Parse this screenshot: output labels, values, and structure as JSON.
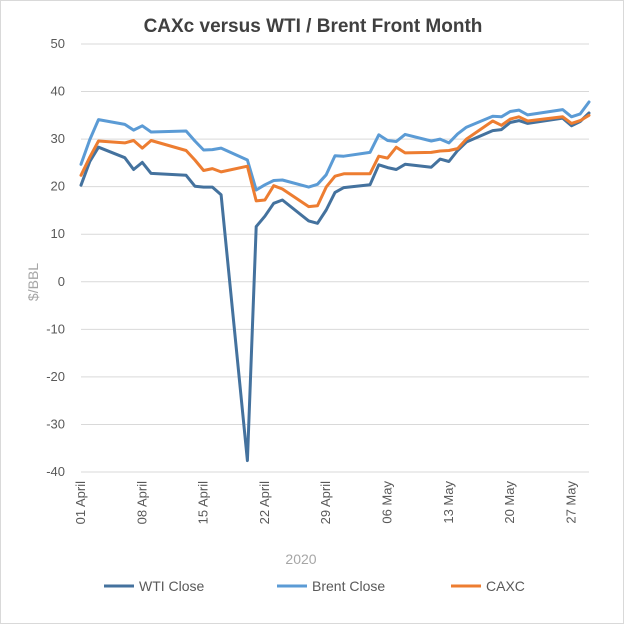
{
  "chart_data": {
    "type": "line",
    "title": "CAXc versus WTI / Brent Front Month",
    "xlabel": "2020",
    "ylabel": "$/BBL",
    "ylim": [
      -40,
      50
    ],
    "yticks": [
      -40,
      -30,
      -20,
      -10,
      0,
      10,
      20,
      30,
      40,
      50
    ],
    "grid": true,
    "legend_position": "bottom",
    "x_start": "2020-04-01",
    "x_end": "2020-05-29",
    "x_tick_labels": [
      {
        "label": "01 April",
        "date": "2020-04-01"
      },
      {
        "label": "08 April",
        "date": "2020-04-08"
      },
      {
        "label": "15 April",
        "date": "2020-04-15"
      },
      {
        "label": "22 April",
        "date": "2020-04-22"
      },
      {
        "label": "29 April",
        "date": "2020-04-29"
      },
      {
        "label": "06 May",
        "date": "2020-05-06"
      },
      {
        "label": "13 May",
        "date": "2020-05-13"
      },
      {
        "label": "20 May",
        "date": "2020-05-20"
      },
      {
        "label": "27 May",
        "date": "2020-05-27"
      }
    ],
    "series": [
      {
        "name": "WTI Close",
        "color": "#44729e",
        "points": [
          [
            "2020-04-01",
            20.3
          ],
          [
            "2020-04-02",
            25.3
          ],
          [
            "2020-04-03",
            28.3
          ],
          [
            "2020-04-06",
            26.1
          ],
          [
            "2020-04-07",
            23.6
          ],
          [
            "2020-04-08",
            25.1
          ],
          [
            "2020-04-09",
            22.8
          ],
          [
            "2020-04-13",
            22.4
          ],
          [
            "2020-04-14",
            20.1
          ],
          [
            "2020-04-15",
            19.9
          ],
          [
            "2020-04-16",
            19.9
          ],
          [
            "2020-04-17",
            18.3
          ],
          [
            "2020-04-20",
            -37.6
          ],
          [
            "2020-04-21",
            11.6
          ],
          [
            "2020-04-22",
            13.8
          ],
          [
            "2020-04-23",
            16.5
          ],
          [
            "2020-04-24",
            17.2
          ],
          [
            "2020-04-27",
            12.8
          ],
          [
            "2020-04-28",
            12.3
          ],
          [
            "2020-04-29",
            15.1
          ],
          [
            "2020-04-30",
            18.8
          ],
          [
            "2020-05-01",
            19.8
          ],
          [
            "2020-05-04",
            20.4
          ],
          [
            "2020-05-05",
            24.6
          ],
          [
            "2020-05-06",
            24.0
          ],
          [
            "2020-05-07",
            23.6
          ],
          [
            "2020-05-08",
            24.7
          ],
          [
            "2020-05-11",
            24.1
          ],
          [
            "2020-05-12",
            25.8
          ],
          [
            "2020-05-13",
            25.3
          ],
          [
            "2020-05-14",
            27.6
          ],
          [
            "2020-05-15",
            29.4
          ],
          [
            "2020-05-18",
            31.8
          ],
          [
            "2020-05-19",
            32.0
          ],
          [
            "2020-05-20",
            33.5
          ],
          [
            "2020-05-21",
            33.9
          ],
          [
            "2020-05-22",
            33.3
          ],
          [
            "2020-05-26",
            34.4
          ],
          [
            "2020-05-27",
            32.8
          ],
          [
            "2020-05-28",
            33.7
          ],
          [
            "2020-05-29",
            35.5
          ]
        ]
      },
      {
        "name": "Brent Close",
        "color": "#5b9bd5",
        "points": [
          [
            "2020-04-01",
            24.7
          ],
          [
            "2020-04-02",
            29.9
          ],
          [
            "2020-04-03",
            34.1
          ],
          [
            "2020-04-06",
            33.1
          ],
          [
            "2020-04-07",
            31.9
          ],
          [
            "2020-04-08",
            32.8
          ],
          [
            "2020-04-09",
            31.5
          ],
          [
            "2020-04-13",
            31.7
          ],
          [
            "2020-04-14",
            29.6
          ],
          [
            "2020-04-15",
            27.7
          ],
          [
            "2020-04-16",
            27.8
          ],
          [
            "2020-04-17",
            28.1
          ],
          [
            "2020-04-20",
            25.6
          ],
          [
            "2020-04-21",
            19.3
          ],
          [
            "2020-04-22",
            20.4
          ],
          [
            "2020-04-23",
            21.3
          ],
          [
            "2020-04-24",
            21.4
          ],
          [
            "2020-04-27",
            19.9
          ],
          [
            "2020-04-28",
            20.5
          ],
          [
            "2020-04-29",
            22.5
          ],
          [
            "2020-04-30",
            26.5
          ],
          [
            "2020-05-01",
            26.4
          ],
          [
            "2020-05-04",
            27.2
          ],
          [
            "2020-05-05",
            30.9
          ],
          [
            "2020-05-06",
            29.7
          ],
          [
            "2020-05-07",
            29.5
          ],
          [
            "2020-05-08",
            31.0
          ],
          [
            "2020-05-11",
            29.6
          ],
          [
            "2020-05-12",
            30.0
          ],
          [
            "2020-05-13",
            29.2
          ],
          [
            "2020-05-14",
            31.1
          ],
          [
            "2020-05-15",
            32.5
          ],
          [
            "2020-05-18",
            34.8
          ],
          [
            "2020-05-19",
            34.7
          ],
          [
            "2020-05-20",
            35.8
          ],
          [
            "2020-05-21",
            36.1
          ],
          [
            "2020-05-22",
            35.1
          ],
          [
            "2020-05-26",
            36.2
          ],
          [
            "2020-05-27",
            34.7
          ],
          [
            "2020-05-28",
            35.3
          ],
          [
            "2020-05-29",
            37.8
          ]
        ]
      },
      {
        "name": "CAXC",
        "color": "#ed7d31",
        "points": [
          [
            "2020-04-01",
            22.4
          ],
          [
            "2020-04-02",
            26.2
          ],
          [
            "2020-04-03",
            29.6
          ],
          [
            "2020-04-06",
            29.2
          ],
          [
            "2020-04-07",
            29.7
          ],
          [
            "2020-04-08",
            28.1
          ],
          [
            "2020-04-09",
            29.7
          ],
          [
            "2020-04-13",
            27.6
          ],
          [
            "2020-04-14",
            25.6
          ],
          [
            "2020-04-15",
            23.4
          ],
          [
            "2020-04-16",
            23.8
          ],
          [
            "2020-04-17",
            23.1
          ],
          [
            "2020-04-20",
            24.3
          ],
          [
            "2020-04-21",
            17.0
          ],
          [
            "2020-04-22",
            17.2
          ],
          [
            "2020-04-23",
            20.2
          ],
          [
            "2020-04-24",
            19.5
          ],
          [
            "2020-04-27",
            15.8
          ],
          [
            "2020-04-28",
            16.0
          ],
          [
            "2020-04-29",
            19.9
          ],
          [
            "2020-04-30",
            22.2
          ],
          [
            "2020-05-01",
            22.7
          ],
          [
            "2020-05-04",
            22.7
          ],
          [
            "2020-05-05",
            26.4
          ],
          [
            "2020-05-06",
            26.0
          ],
          [
            "2020-05-07",
            28.3
          ],
          [
            "2020-05-08",
            27.1
          ],
          [
            "2020-05-11",
            27.2
          ],
          [
            "2020-05-12",
            27.5
          ],
          [
            "2020-05-13",
            27.6
          ],
          [
            "2020-05-14",
            28.0
          ],
          [
            "2020-05-15",
            30.0
          ],
          [
            "2020-05-18",
            33.8
          ],
          [
            "2020-05-19",
            32.9
          ],
          [
            "2020-05-20",
            34.2
          ],
          [
            "2020-05-21",
            34.7
          ],
          [
            "2020-05-22",
            33.8
          ],
          [
            "2020-05-26",
            34.7
          ],
          [
            "2020-05-27",
            33.3
          ],
          [
            "2020-05-28",
            33.9
          ],
          [
            "2020-05-29",
            35.0
          ]
        ]
      }
    ]
  }
}
